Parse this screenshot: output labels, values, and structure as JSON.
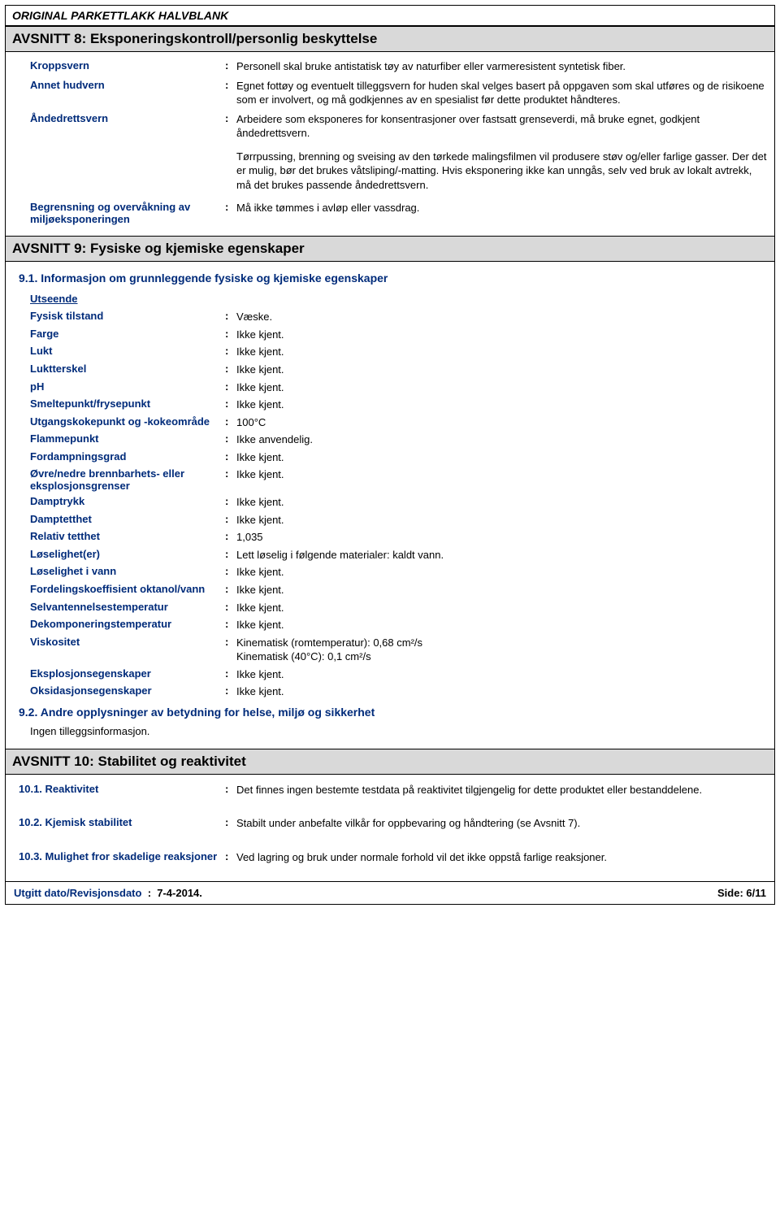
{
  "doc_title": "ORIGINAL PARKETTLAKK HALVBLANK",
  "section8": {
    "heading": "AVSNITT 8: Eksponeringskontroll/personlig beskyttelse",
    "rows": [
      {
        "label": "Kroppsvern",
        "value": "Personell skal bruke antistatisk tøy av naturfiber eller varmeresistent syntetisk fiber."
      },
      {
        "label": "Annet hudvern",
        "value": "Egnet fottøy og eventuelt tilleggsvern for huden skal velges basert på oppgaven som skal utføres og de risikoene som er involvert, og må godkjennes av en spesialist før dette produktet håndteres."
      },
      {
        "label": "Åndedrettsvern",
        "value": "Arbeidere som eksponeres for konsentrasjoner over fastsatt grenseverdi, må bruke egnet, godkjent åndedrettsvern."
      }
    ],
    "extra_para": "Tørrpussing, brenning og sveising av den tørkede malingsfilmen vil produsere støv og/eller farlige gasser. Der det er mulig, bør det brukes våtsliping/-matting. Hvis eksponering ikke kan unngås, selv ved bruk av lokalt avtrekk, må det brukes passende åndedrettsvern.",
    "last_row": {
      "label": "Begrensning og overvåkning av miljøeksponeringen",
      "value": "Må ikke tømmes i avløp eller vassdrag."
    }
  },
  "section9": {
    "heading": "AVSNITT 9: Fysiske og kjemiske egenskaper",
    "sub91": "9.1. Informasjon om grunnleggende fysiske og kjemiske egenskaper",
    "utseende": "Utseende",
    "props": [
      {
        "label": "Fysisk tilstand",
        "value": "Væske."
      },
      {
        "label": "Farge",
        "value": "Ikke kjent."
      },
      {
        "label": "Lukt",
        "value": "Ikke kjent."
      },
      {
        "label": "Luktterskel",
        "value": "Ikke kjent."
      },
      {
        "label": "pH",
        "value": "Ikke kjent."
      },
      {
        "label": "Smeltepunkt/frysepunkt",
        "value": "Ikke kjent."
      },
      {
        "label": "Utgangskokepunkt og -kokeområde",
        "value": "100°C"
      },
      {
        "label": "Flammepunkt",
        "value": "Ikke anvendelig."
      },
      {
        "label": "Fordampningsgrad",
        "value": "Ikke kjent."
      },
      {
        "label": "Øvre/nedre brennbarhets- eller eksplosjonsgrenser",
        "value": "Ikke kjent."
      },
      {
        "label": "Damptrykk",
        "value": "Ikke kjent."
      },
      {
        "label": "Damptetthet",
        "value": "Ikke kjent."
      },
      {
        "label": "Relativ tetthet",
        "value": "1,035"
      },
      {
        "label": "Løselighet(er)",
        "value": "Lett løselig i følgende materialer: kaldt vann."
      },
      {
        "label": "Løselighet i vann",
        "value": "Ikke kjent."
      },
      {
        "label": "Fordelingskoeffisient oktanol/vann",
        "value": "Ikke kjent."
      },
      {
        "label": "Selvantennelsestemperatur",
        "value": "Ikke kjent."
      },
      {
        "label": "Dekomponeringstemperatur",
        "value": "Ikke kjent."
      },
      {
        "label": "Viskositet",
        "value": "Kinematisk (romtemperatur): 0,68 cm²/s\nKinematisk (40°C): 0,1 cm²/s"
      },
      {
        "label": "Eksplosjonsegenskaper",
        "value": "Ikke kjent."
      },
      {
        "label": "Oksidasjonsegenskaper",
        "value": "Ikke kjent."
      }
    ],
    "sub92": "9.2. Andre opplysninger av betydning for helse, miljø og sikkerhet",
    "sub92_text": "Ingen tilleggsinformasjon."
  },
  "section10": {
    "heading": "AVSNITT 10: Stabilitet og reaktivitet",
    "rows": [
      {
        "label": "10.1. Reaktivitet",
        "value": "Det finnes ingen bestemte testdata på reaktivitet tilgjengelig for dette produktet eller bestanddelene."
      },
      {
        "label": "10.2. Kjemisk stabilitet",
        "value": "Stabilt under anbefalte vilkår for oppbevaring og håndtering (se Avsnitt 7)."
      },
      {
        "label": "10.3. Mulighet fror skadelige reaksjoner",
        "value": "Ved lagring og bruk under normale forhold vil det ikke oppstå farlige reaksjoner."
      }
    ]
  },
  "footer": {
    "left_label": "Utgitt dato/Revisjonsdato",
    "left_value": "7-4-2014.",
    "right": "Side: 6/11"
  }
}
